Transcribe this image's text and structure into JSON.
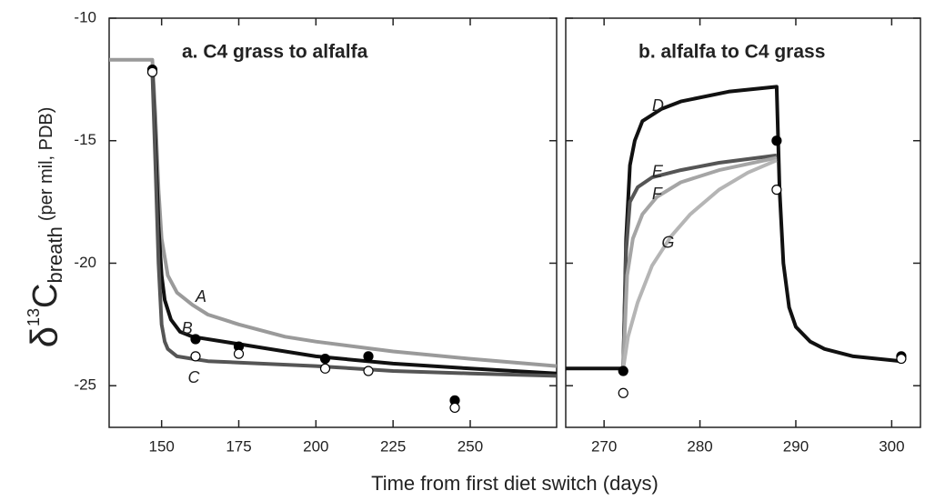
{
  "x_label": "Time from first diet switch (days)",
  "y_label": {
    "symbol": "δ",
    "superscript": "13",
    "base": "C",
    "subscript": "breath",
    "units": "(per mil, PDB)"
  },
  "chart_data": [
    {
      "type": "line",
      "title": "a. C4 grass to alfalfa",
      "xlim": [
        133,
        278
      ],
      "xticks": [
        150,
        175,
        200,
        225,
        250
      ],
      "ylim": [
        -26.7,
        -10
      ],
      "yticks": [
        -10,
        -15,
        -20,
        -25
      ],
      "series": [
        {
          "name": "A",
          "color": "#9a9a9a",
          "x": [
            133,
            147,
            148,
            149,
            150,
            152,
            155,
            160,
            165,
            175,
            190,
            200,
            225,
            250,
            278
          ],
          "values": [
            -11.7,
            -11.7,
            -14,
            -17,
            -19,
            -20.5,
            -21.2,
            -21.7,
            -22.1,
            -22.5,
            -23,
            -23.2,
            -23.6,
            -23.9,
            -24.2
          ]
        },
        {
          "name": "B",
          "color": "#111111",
          "x": [
            147,
            148,
            149,
            150,
            151,
            153,
            156,
            160,
            175,
            200,
            225,
            250,
            278
          ],
          "values": [
            -12.1,
            -15,
            -18.5,
            -20.5,
            -21.5,
            -22.3,
            -22.8,
            -23,
            -23.3,
            -23.8,
            -24.1,
            -24.3,
            -24.5
          ]
        },
        {
          "name": "C",
          "color": "#555555",
          "x": [
            147,
            148,
            149,
            150,
            151,
            152,
            155,
            160,
            165,
            200,
            225,
            250,
            278
          ],
          "values": [
            -12.2,
            -16,
            -20,
            -22.5,
            -23.2,
            -23.5,
            -23.8,
            -23.9,
            -24,
            -24.2,
            -24.4,
            -24.5,
            -24.6
          ]
        }
      ],
      "points": [
        {
          "color": "#000000",
          "fill": "#000000",
          "x": [
            147,
            161,
            175,
            203,
            217,
            245
          ],
          "values": [
            -12.1,
            -23.1,
            -23.4,
            -23.9,
            -23.8,
            -25.6
          ]
        },
        {
          "color": "#000000",
          "fill": "#ffffff",
          "x": [
            147,
            161,
            175,
            203,
            217,
            245
          ],
          "values": [
            -12.2,
            -23.8,
            -23.7,
            -24.3,
            -24.4,
            -25.9
          ]
        }
      ]
    },
    {
      "type": "line",
      "title": "b. alfalfa to C4 grass",
      "xlim": [
        266,
        303
      ],
      "xticks": [
        270,
        280,
        290,
        300
      ],
      "ylim": [
        -26.7,
        -10
      ],
      "yticks": [
        -10,
        -15,
        -20,
        -25
      ],
      "series": [
        {
          "name": "D",
          "color": "#111111",
          "x": [
            266,
            272,
            272.3,
            272.7,
            273.2,
            274,
            276,
            278,
            283,
            288,
            288.3,
            288.7,
            289.3,
            290,
            291.5,
            293,
            296,
            301
          ],
          "values": [
            -24.3,
            -24.3,
            -19,
            -16,
            -15,
            -14.2,
            -13.7,
            -13.4,
            -13,
            -12.8,
            -17,
            -20,
            -21.8,
            -22.6,
            -23.2,
            -23.5,
            -23.8,
            -24
          ]
        },
        {
          "name": "E",
          "color": "#555555",
          "x": [
            272,
            272.3,
            272.7,
            273.5,
            275,
            278,
            282,
            288
          ],
          "values": [
            -24.3,
            -19.5,
            -17.5,
            -16.9,
            -16.5,
            -16.2,
            -15.9,
            -15.6
          ]
        },
        {
          "name": "F",
          "color": "#a5a5a5",
          "x": [
            272,
            272.4,
            273,
            274,
            275.5,
            278,
            282,
            288
          ],
          "values": [
            -24.3,
            -20.5,
            -19,
            -18,
            -17.3,
            -16.7,
            -16.2,
            -15.7
          ]
        },
        {
          "name": "G",
          "color": "#b5b5b5",
          "x": [
            272,
            272.5,
            273.5,
            275,
            277,
            279,
            282,
            285,
            288
          ],
          "values": [
            -24.3,
            -23,
            -21.6,
            -20.1,
            -18.9,
            -18,
            -17,
            -16.3,
            -15.8
          ]
        }
      ],
      "points": [
        {
          "color": "#000000",
          "fill": "#000000",
          "x": [
            272,
            288,
            301
          ],
          "values": [
            -24.4,
            -15,
            -23.8
          ]
        },
        {
          "color": "#000000",
          "fill": "#ffffff",
          "x": [
            272,
            288,
            301
          ],
          "values": [
            -25.3,
            -17,
            -23.9
          ]
        }
      ]
    }
  ]
}
